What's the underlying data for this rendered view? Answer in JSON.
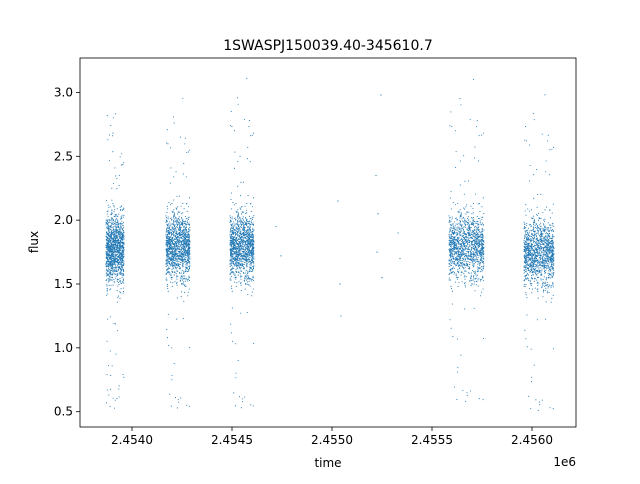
{
  "chart_data": {
    "type": "scatter",
    "title": "1SWASPJ150039.40-345610.7",
    "xlabel": "time",
    "ylabel": "flux",
    "x_offset_label": "1e6",
    "xlim": [
      2453740,
      2456220
    ],
    "ylim": [
      0.38,
      3.27
    ],
    "x_ticks": [
      {
        "value": 2454000,
        "label": "2.4540"
      },
      {
        "value": 2454500,
        "label": "2.4545"
      },
      {
        "value": 2455000,
        "label": "2.4550"
      },
      {
        "value": 2455500,
        "label": "2.4555"
      },
      {
        "value": 2456000,
        "label": "2.4560"
      }
    ],
    "y_ticks": [
      {
        "value": 0.5,
        "label": "0.5"
      },
      {
        "value": 1.0,
        "label": "1.0"
      },
      {
        "value": 1.5,
        "label": "1.5"
      },
      {
        "value": 2.0,
        "label": "2.0"
      },
      {
        "value": 2.5,
        "label": "2.5"
      },
      {
        "value": 3.0,
        "label": "3.0"
      }
    ],
    "marker_color": "#1f77b4",
    "series": [
      {
        "observing_seasons": [
          {
            "x_start": 2453870,
            "x_end": 2453960,
            "median_flux": 1.78,
            "flux_min": 0.5,
            "flux_max": 2.85
          },
          {
            "x_start": 2454170,
            "x_end": 2454290,
            "median_flux": 1.8,
            "flux_min": 0.5,
            "flux_max": 2.97
          },
          {
            "x_start": 2454490,
            "x_end": 2454610,
            "median_flux": 1.8,
            "flux_min": 0.5,
            "flux_max": 3.13
          },
          {
            "x_start": 2455585,
            "x_end": 2455760,
            "median_flux": 1.8,
            "flux_min": 0.55,
            "flux_max": 3.12
          },
          {
            "x_start": 2455960,
            "x_end": 2456110,
            "median_flux": 1.75,
            "flux_min": 0.48,
            "flux_max": 3.0
          }
        ],
        "isolated_points": [
          {
            "x": 2454720,
            "y": 1.95
          },
          {
            "x": 2454745,
            "y": 1.72
          },
          {
            "x": 2455030,
            "y": 2.15
          },
          {
            "x": 2455040,
            "y": 1.5
          },
          {
            "x": 2455045,
            "y": 1.25
          },
          {
            "x": 2455220,
            "y": 2.35
          },
          {
            "x": 2455225,
            "y": 1.75
          },
          {
            "x": 2455230,
            "y": 2.05
          },
          {
            "x": 2455245,
            "y": 2.98
          },
          {
            "x": 2455250,
            "y": 1.55
          },
          {
            "x": 2455330,
            "y": 1.9
          },
          {
            "x": 2455340,
            "y": 1.7
          }
        ]
      }
    ]
  }
}
